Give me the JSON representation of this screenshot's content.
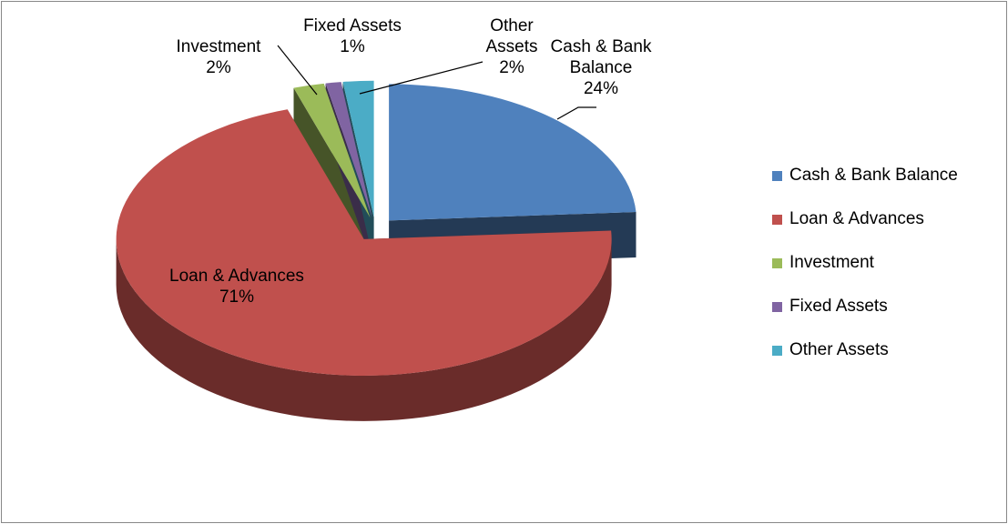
{
  "chart_data": {
    "type": "pie",
    "three_d": true,
    "exploded": true,
    "categories": [
      "Cash & Bank Balance",
      "Loan & Advances",
      "Investment",
      "Fixed Assets",
      "Other Assets"
    ],
    "values": [
      24,
      71,
      2,
      1,
      2
    ],
    "value_labels": [
      "24%",
      "71%",
      "2%",
      "1%",
      "2%"
    ],
    "colors": [
      "#4f81bd",
      "#c0504d",
      "#9bbb59",
      "#8064a2",
      "#4bacc6"
    ],
    "legend": "right"
  }
}
